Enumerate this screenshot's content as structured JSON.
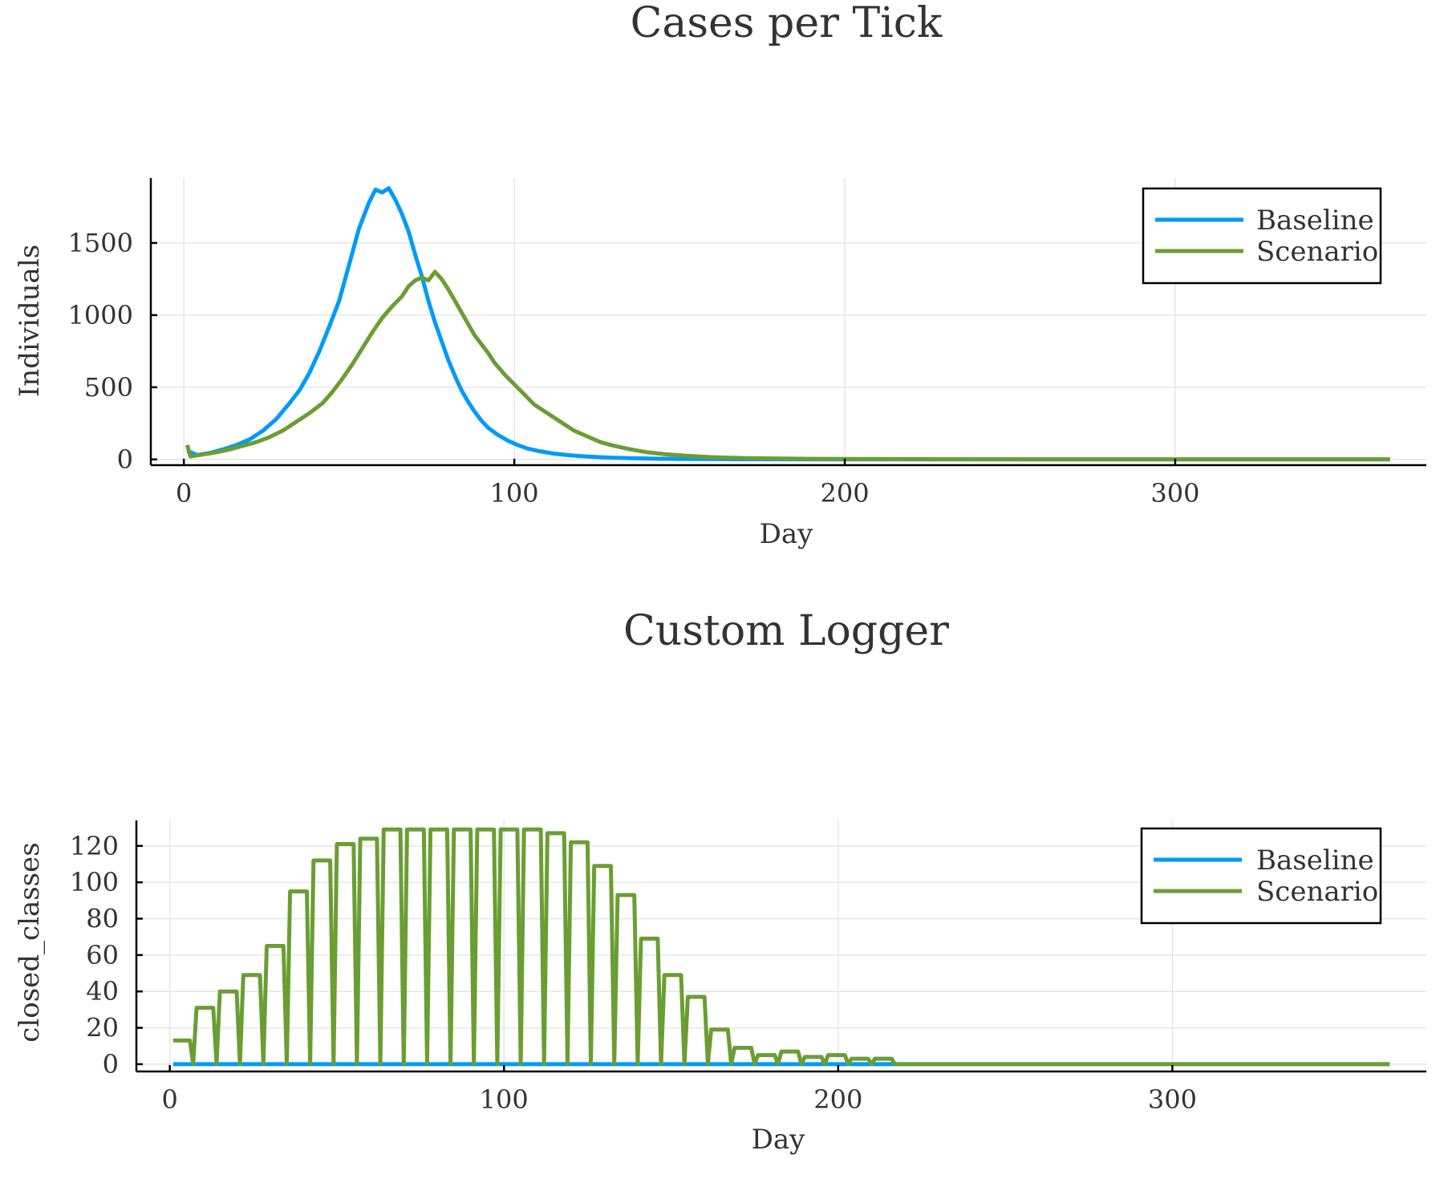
{
  "chart_data": [
    {
      "type": "line",
      "title": "Cases per Tick",
      "xlabel": "Day",
      "ylabel": "Individuals",
      "xlim": [
        -10,
        376
      ],
      "ylim": [
        -40,
        1950
      ],
      "xticks": [
        0,
        100,
        200,
        300
      ],
      "yticks": [
        0,
        500,
        1000,
        1500
      ],
      "grid": true,
      "legend": "top-right",
      "series": [
        {
          "name": "Baseline",
          "color": "#009AFA",
          "x": [
            1,
            4,
            8,
            12,
            16,
            20,
            24,
            28,
            32,
            35,
            38,
            41,
            44,
            47,
            50,
            53,
            56,
            58,
            60,
            62,
            64,
            66,
            68,
            70,
            72,
            74,
            76,
            78,
            80,
            82,
            84,
            86,
            88,
            90,
            92,
            95,
            98,
            101,
            104,
            108,
            112,
            116,
            120,
            125,
            130,
            136,
            142,
            150,
            160,
            170,
            180,
            190,
            200,
            220,
            250,
            300,
            365
          ],
          "y": [
            60,
            30,
            45,
            70,
            100,
            140,
            200,
            280,
            390,
            480,
            600,
            750,
            920,
            1100,
            1350,
            1600,
            1780,
            1870,
            1850,
            1880,
            1800,
            1700,
            1580,
            1420,
            1270,
            1100,
            950,
            820,
            690,
            580,
            480,
            400,
            330,
            270,
            220,
            170,
            130,
            100,
            75,
            55,
            40,
            30,
            22,
            16,
            11,
            8,
            5,
            3,
            2,
            1,
            1,
            0,
            0,
            0,
            0,
            0,
            0
          ]
        },
        {
          "name": "Scenario",
          "color": "#6A9E33",
          "x": [
            1,
            2,
            6,
            10,
            14,
            18,
            22,
            26,
            30,
            34,
            38,
            42,
            45,
            48,
            51,
            54,
            57,
            60,
            63,
            66,
            68,
            70,
            72,
            74,
            76,
            78,
            80,
            82,
            84,
            86,
            88,
            90,
            92,
            94,
            97,
            100,
            103,
            106,
            110,
            114,
            118,
            122,
            126,
            130,
            135,
            140,
            146,
            152,
            160,
            170,
            180,
            190,
            200,
            210,
            230,
            260,
            300,
            365
          ],
          "y": [
            100,
            20,
            35,
            50,
            70,
            95,
            120,
            155,
            200,
            260,
            320,
            390,
            470,
            560,
            660,
            770,
            880,
            980,
            1060,
            1130,
            1200,
            1240,
            1260,
            1240,
            1300,
            1250,
            1180,
            1100,
            1020,
            940,
            860,
            800,
            740,
            670,
            590,
            520,
            450,
            380,
            320,
            260,
            200,
            160,
            120,
            95,
            70,
            50,
            35,
            25,
            15,
            9,
            6,
            4,
            3,
            2,
            1,
            0,
            0,
            0
          ]
        }
      ]
    },
    {
      "type": "line",
      "title": "Custom Logger",
      "xlabel": "Day",
      "ylabel": "closed_classes",
      "xlim": [
        -10,
        376
      ],
      "ylim": [
        -4,
        134
      ],
      "xticks": [
        0,
        100,
        200,
        300
      ],
      "yticks": [
        0,
        20,
        40,
        60,
        80,
        100,
        120
      ],
      "grid": true,
      "legend": "top-right",
      "series": [
        {
          "name": "Baseline",
          "color": "#009AFA",
          "x": [
            1,
            365
          ],
          "y": [
            0,
            0
          ]
        },
        {
          "name": "Scenario",
          "color": "#6A9E33",
          "pulse_width": 5,
          "period": 7,
          "pulse_starts": [
            1,
            8,
            15,
            22,
            29,
            36,
            43,
            50,
            57,
            64,
            71,
            78,
            85,
            92,
            99,
            106,
            113,
            120,
            127,
            134,
            141,
            148,
            155,
            162,
            169,
            176,
            183,
            190,
            197,
            204,
            211
          ],
          "pulse_values": [
            13,
            31,
            40,
            49,
            65,
            95,
            112,
            121,
            124,
            129,
            129,
            129,
            129,
            129,
            129,
            129,
            127,
            122,
            109,
            93,
            69,
            49,
            37,
            19,
            9,
            5,
            7,
            4,
            5,
            3,
            3
          ],
          "x_end": 365
        }
      ]
    }
  ]
}
